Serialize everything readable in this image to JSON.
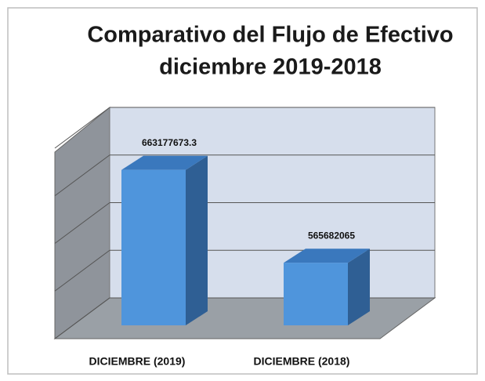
{
  "chart_data": {
    "type": "bar3d",
    "title": [
      "Comparativo del Flujo de Efectivo",
      "diciembre  2019-2018"
    ],
    "categories": [
      "DICIEMBRE (2019)",
      "DICIEMBRE (2018)"
    ],
    "values": [
      663177673.3,
      565682065
    ],
    "color": "#4f95dc",
    "ylim": [
      500000000,
      700000000
    ],
    "yticks": [
      500000000,
      550000000,
      600000000,
      650000000,
      700000000
    ],
    "grid": true
  }
}
